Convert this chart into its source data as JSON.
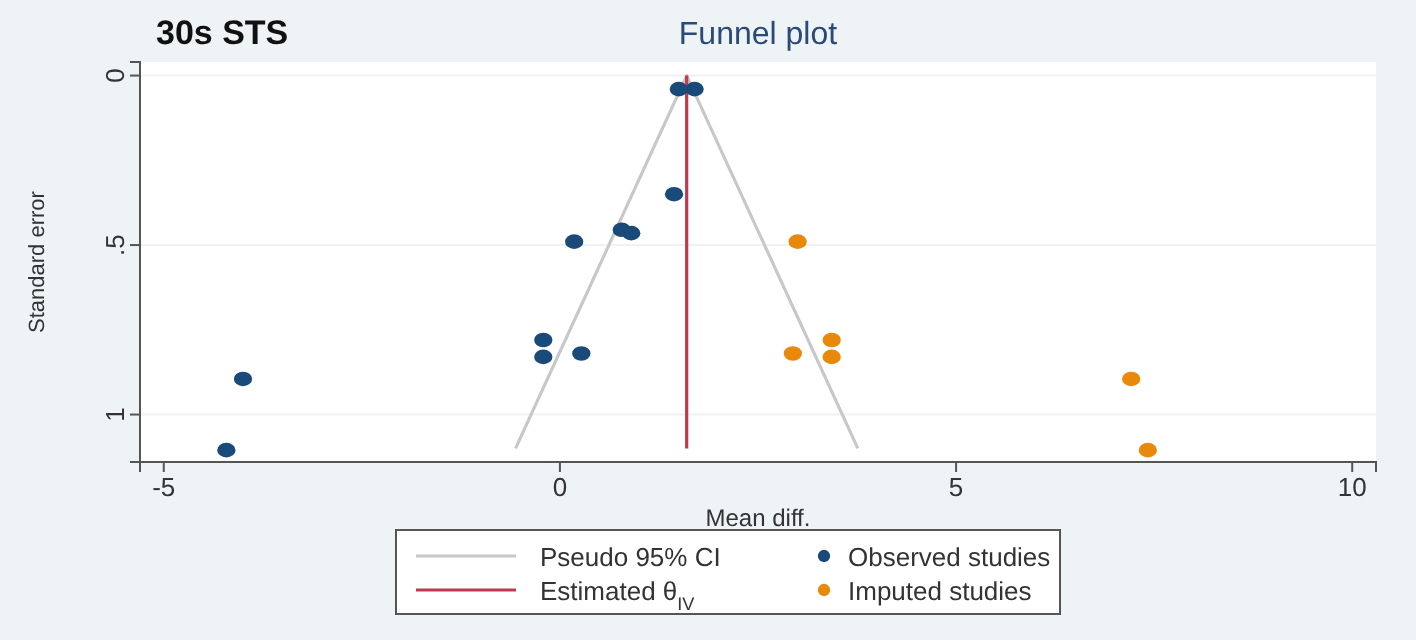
{
  "chart_data": {
    "type": "scatter",
    "title": "Funnel plot",
    "annotations": [
      "30s STS"
    ],
    "xlabel": "Mean diff.",
    "ylabel": "Standard error",
    "xlim": [
      -5.3,
      10.3
    ],
    "xticks": [
      -5,
      0,
      5,
      10
    ],
    "ylim": [
      1.14,
      -0.04
    ],
    "yticks": [
      0,
      {
        "value": 0.5,
        "label": ".5"
      },
      1
    ],
    "grid": "y",
    "legend": "bottom",
    "series": [
      {
        "name": "Pseudo 95% CI",
        "type": "line",
        "color": "#c8c8c8",
        "x": [
          -0.56,
          1.6,
          3.76
        ],
        "values": [
          1.1,
          0,
          1.1
        ]
      },
      {
        "name": "Estimated θ$_{IV}$",
        "type": "line",
        "color": "#c0394d",
        "x": [
          1.6,
          1.6
        ],
        "values": [
          0,
          1.1
        ]
      },
      {
        "name": "Observed studies",
        "marker": "circle",
        "color": "#1a4a7a",
        "x": [
          1.5,
          1.7,
          1.44,
          0.78,
          0.9,
          0.18,
          -0.21,
          -0.21,
          0.27,
          -4.0,
          -4.21
        ],
        "values": [
          0.04,
          0.04,
          0.35,
          0.455,
          0.465,
          0.49,
          0.78,
          0.83,
          0.82,
          0.895,
          1.105
        ]
      },
      {
        "name": "Imputed studies",
        "marker": "circle",
        "color": "#e8890c",
        "x": [
          3.0,
          2.94,
          3.43,
          3.43,
          7.21,
          7.42
        ],
        "values": [
          0.49,
          0.82,
          0.78,
          0.83,
          0.895,
          1.105
        ]
      }
    ]
  }
}
